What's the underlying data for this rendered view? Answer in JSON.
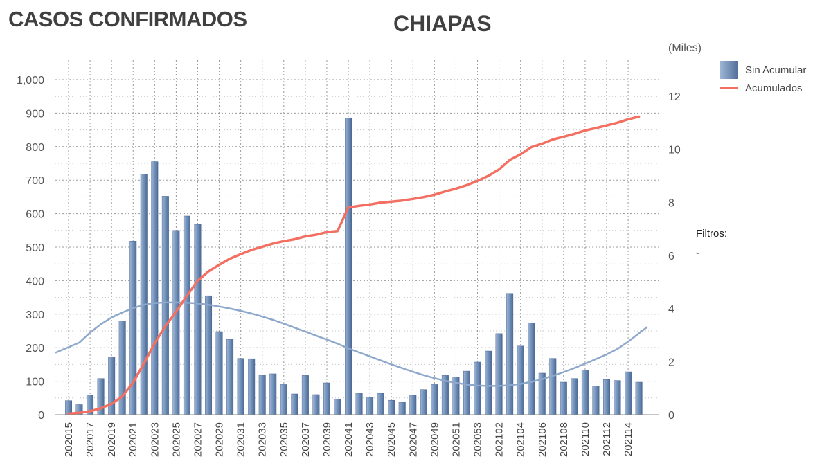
{
  "header": {
    "title": "CASOS CONFIRMADOS",
    "region": "CHIAPAS",
    "units": "(Miles)"
  },
  "legend": {
    "bars_label": "Sin Acumular",
    "line_label": "Acumulados"
  },
  "filters": {
    "label": "Filtros:",
    "value": "-"
  },
  "colors": {
    "bars": "#5f7fa9",
    "cumulative_line": "#f26f61",
    "trend_line": "#8ea8cc"
  },
  "chart_data": {
    "type": "bar",
    "categories": [
      "202015",
      "202016",
      "202017",
      "202018",
      "202019",
      "202020",
      "202021",
      "202022",
      "202023",
      "202024",
      "202025",
      "202026",
      "202027",
      "202028",
      "202029",
      "202030",
      "202031",
      "202032",
      "202033",
      "202034",
      "202035",
      "202036",
      "202037",
      "202038",
      "202039",
      "202040",
      "202041",
      "202042",
      "202043",
      "202044",
      "202045",
      "202046",
      "202047",
      "202048",
      "202049",
      "202050",
      "202051",
      "202052",
      "202053",
      "202101",
      "202102",
      "202103",
      "202104",
      "202105",
      "202106",
      "202107",
      "202108",
      "202109",
      "202110",
      "202111",
      "202112",
      "202113",
      "202114",
      "202115"
    ],
    "x_tick_labels": [
      "202015",
      "202017",
      "202019",
      "202021",
      "202023",
      "202025",
      "202027",
      "202029",
      "202031",
      "202033",
      "202035",
      "202037",
      "202039",
      "202041",
      "202043",
      "202045",
      "202047",
      "202049",
      "202051",
      "202053",
      "202102",
      "202104",
      "202106",
      "202108",
      "202110",
      "202112",
      "202114"
    ],
    "series": [
      {
        "name": "Sin Acumular",
        "type": "bar",
        "axis": "left",
        "values": [
          42,
          30,
          58,
          108,
          173,
          280,
          518,
          718,
          755,
          652,
          550,
          593,
          568,
          355,
          248,
          225,
          168,
          167,
          118,
          122,
          90,
          62,
          117,
          60,
          95,
          47,
          885,
          64,
          52,
          64,
          43,
          37,
          58,
          75,
          90,
          117,
          112,
          130,
          157,
          190,
          242,
          362,
          205,
          274,
          124,
          168,
          97,
          108,
          133,
          86,
          105,
          102,
          128,
          97
        ]
      },
      {
        "name": "Acumulados",
        "type": "line",
        "axis": "right",
        "values": [
          0.04,
          0.07,
          0.13,
          0.24,
          0.41,
          0.69,
          1.21,
          1.93,
          2.69,
          3.34,
          3.89,
          4.48,
          5.05,
          5.4,
          5.65,
          5.88,
          6.05,
          6.21,
          6.33,
          6.45,
          6.54,
          6.61,
          6.72,
          6.78,
          6.88,
          6.92,
          7.81,
          7.87,
          7.92,
          7.99,
          8.03,
          8.07,
          8.13,
          8.2,
          8.29,
          8.41,
          8.52,
          8.65,
          8.81,
          9.0,
          9.24,
          9.6,
          9.81,
          10.08,
          10.21,
          10.37,
          10.47,
          10.58,
          10.71,
          10.8,
          10.9,
          11.0,
          11.13,
          11.23
        ]
      },
      {
        "type": "line",
        "axis": "left",
        "style": "trend",
        "values": [
          185,
          215,
          245,
          270,
          290,
          305,
          318,
          328,
          333,
          335,
          335,
          334,
          332,
          328,
          323,
          317,
          310,
          302,
          293,
          283,
          272,
          260,
          248,
          236,
          224,
          212,
          198,
          186,
          174,
          162,
          150,
          139,
          128,
          118,
          109,
          101,
          95,
          90,
          87,
          86,
          86,
          88,
          92,
          98,
          106,
          116,
          127,
          139,
          152,
          166,
          180,
          196,
          218,
          262
        ]
      }
    ],
    "ylim_left": [
      0,
      1000
    ],
    "left_ticks": [
      0,
      100,
      200,
      300,
      400,
      500,
      600,
      700,
      800,
      900,
      1000
    ],
    "left_tick_labels": [
      "0",
      "100",
      "200",
      "300",
      "400",
      "500",
      "600",
      "700",
      "800",
      "900",
      "1,000"
    ],
    "ylim_right": [
      0,
      12.8
    ],
    "right_ticks": [
      0,
      2,
      4,
      6,
      8,
      10,
      12
    ],
    "right_tick_labels": [
      "0",
      "2",
      "4",
      "6",
      "8",
      "10",
      "12"
    ],
    "right_axis_label": "(Miles)",
    "grid": true,
    "legend_position": "top-right"
  }
}
